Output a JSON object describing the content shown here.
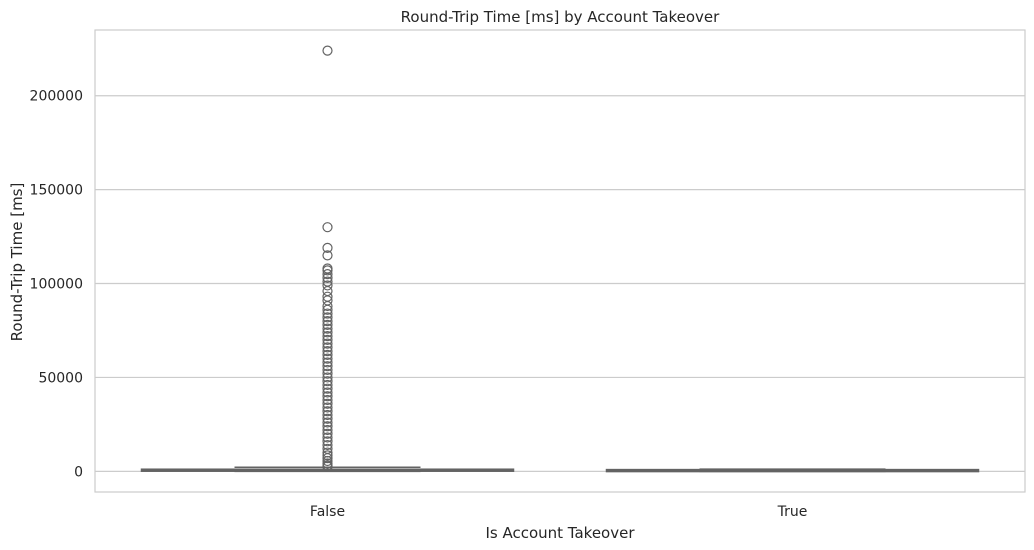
{
  "chart_data": {
    "type": "box",
    "title": "Round-Trip Time [ms] by Account Takeover",
    "xlabel": "Is Account Takeover",
    "ylabel": "Round-Trip Time [ms]",
    "categories": [
      "False",
      "True"
    ],
    "ylim": [
      -11000,
      235000
    ],
    "yticks": [
      0,
      50000,
      100000,
      150000,
      200000
    ],
    "ytick_labels": [
      "0",
      "50000",
      "100000",
      "150000",
      "200000"
    ],
    "grid": true,
    "colors": {
      "box": "#636363",
      "grid": "#cccccc",
      "spine": "#cccccc",
      "text": "#262626"
    },
    "boxes": [
      {
        "category": "False",
        "whisker_low": 0,
        "q1": 200,
        "median": 500,
        "q3": 1000,
        "whisker_high": 2200,
        "outliers": [
          224000,
          130000,
          119000,
          115000,
          108000,
          107000,
          105000,
          103000,
          101000,
          99000,
          96000,
          93000,
          91000,
          88000,
          86000,
          84000,
          82000,
          80000,
          78000,
          76000,
          74000,
          72000,
          70000,
          68000,
          66000,
          64000,
          62000,
          60000,
          58000,
          56000,
          54000,
          52000,
          50000,
          48000,
          46000,
          44000,
          42000,
          40000,
          38000,
          36000,
          34000,
          32000,
          30000,
          28000,
          26000,
          24000,
          22000,
          20000,
          18000,
          16000,
          14000,
          12000,
          10000,
          8500,
          7000,
          5500,
          4200,
          3200,
          2600
        ]
      },
      {
        "category": "True",
        "whisker_low": 0,
        "q1": 150,
        "median": 350,
        "q3": 650,
        "whisker_high": 1200,
        "outliers": []
      }
    ]
  }
}
